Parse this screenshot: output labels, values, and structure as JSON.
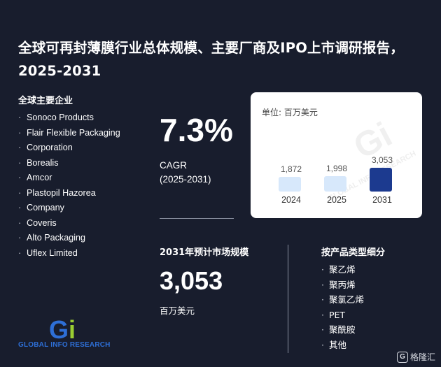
{
  "title": "全球可再封薄膜行业总体规模、主要厂商及IPO上市调研报告，2025-2031",
  "companies": {
    "heading": "全球主要企业",
    "items": [
      "Sonoco Products",
      "Flair Flexible Packaging",
      "Corporation",
      "Borealis",
      "Amcor",
      "Plastopil Hazorea",
      "Company",
      "Coveris",
      "Alto Packaging",
      "Uflex Limited"
    ]
  },
  "cagr": {
    "value": "7.3%",
    "label": "CAGR",
    "range": "(2025-2031)"
  },
  "chart_data": {
    "type": "bar",
    "unit_label": "单位: 百万美元",
    "categories": [
      "2024",
      "2025",
      "2031"
    ],
    "values": [
      1872,
      1998,
      3053
    ],
    "value_labels": [
      "1,872",
      "1,998",
      "3,053"
    ],
    "colors": [
      "#d7e8fb",
      "#d7e8fb",
      "#1c3a8f"
    ]
  },
  "market": {
    "heading": "2031年预计市场规模",
    "value": "3,053",
    "unit": "百万美元"
  },
  "segments": {
    "heading": "按产品类型细分",
    "items": [
      "聚乙烯",
      "聚丙烯",
      "聚氯乙烯",
      "PET",
      "聚酰胺",
      "其他"
    ]
  },
  "logo": {
    "letters_g": "G",
    "letters_i": "i",
    "text": "GLOBAL INFO RESEARCH"
  },
  "card_watermark": {
    "logo": "Gi",
    "text": "GLOBAL INFO RESEARCH"
  },
  "brand": {
    "icon": "G",
    "name": "格隆汇"
  }
}
